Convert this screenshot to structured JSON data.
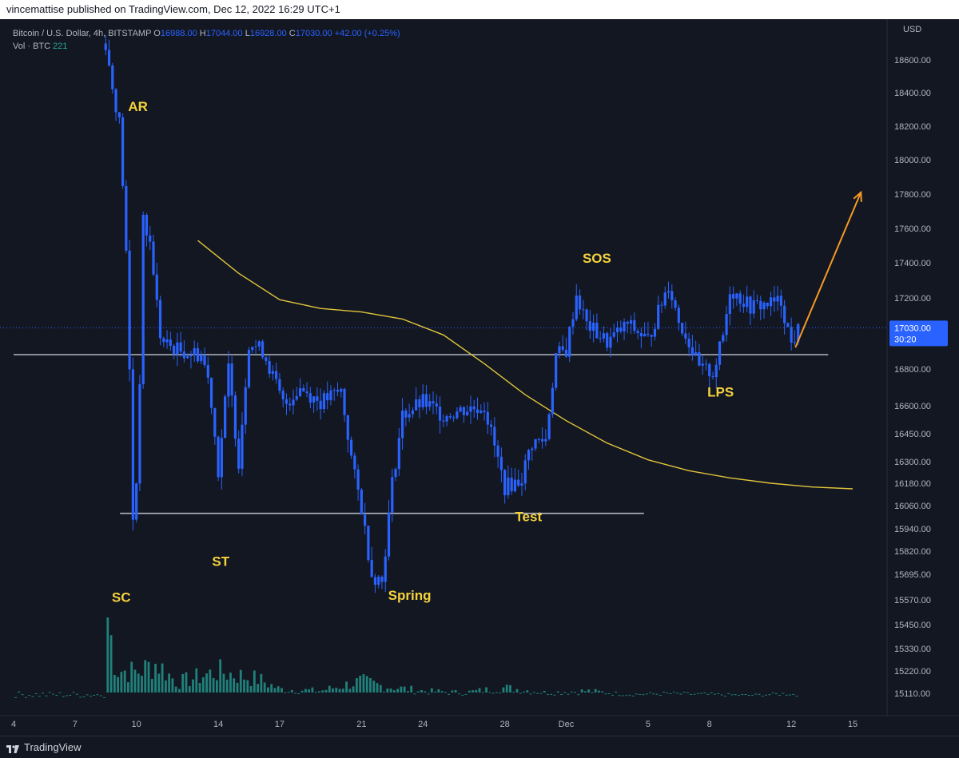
{
  "publisher": "vincemattise published on TradingView.com, Dec 12, 2022 16:29 UTC+1",
  "footer": {
    "brand": "TradingView"
  },
  "legend": {
    "symbol": "Bitcoin / U.S. Dollar, 4h, BITSTAMP",
    "open_label": "O",
    "open": "16988.00",
    "high_label": "H",
    "high": "17044.00",
    "low_label": "L",
    "low": "16928.00",
    "close_label": "C",
    "close": "17030.00",
    "change": "+42.00 (+0.25%)",
    "vol_label": "Vol · BTC",
    "vol_value": "221"
  },
  "price_tag": {
    "price": "17030.00",
    "countdown": "30:20"
  },
  "colors": {
    "background": "#131722",
    "candle": "#2962ff",
    "volume": "#26a69a",
    "annotation": "#f5d23c",
    "curve": "#e0c43a",
    "arrow": "#f59a23",
    "level": "#b2b5be"
  },
  "chart_data": {
    "type": "candlestick",
    "currency_label": "USD",
    "y_ticks": [
      18600,
      18400,
      18200,
      18000,
      17800,
      17600,
      17400,
      17200,
      17000,
      16800,
      16600,
      16450,
      16300,
      16180,
      16060,
      15940,
      15820,
      15695,
      15570,
      15450,
      15330,
      15220,
      15110
    ],
    "y_tick_labels": [
      "18600.00",
      "18400.00",
      "18200.00",
      "18000.00",
      "17800.00",
      "17600.00",
      "17400.00",
      "17200.00",
      "17000.00",
      "16800.00",
      "16600.00",
      "16450.00",
      "16300.00",
      "16180.00",
      "16060.00",
      "15940.00",
      "15820.00",
      "15695.00",
      "15570.00",
      "15450.00",
      "15330.00",
      "15220.00",
      "15110.00"
    ],
    "x_ticks": [
      "4",
      "7",
      "10",
      "14",
      "17",
      "21",
      "24",
      "28",
      "Dec",
      "5",
      "8",
      "12",
      "15"
    ],
    "x_tick_days": [
      4,
      7,
      10,
      14,
      17,
      21,
      24,
      28,
      31,
      35,
      38,
      42,
      45
    ],
    "candle_path": [
      [
        8.5,
        18700
      ],
      [
        8.8,
        18450
      ],
      [
        9.2,
        18200
      ],
      [
        9.6,
        17200
      ],
      [
        9.8,
        15960
      ],
      [
        10.1,
        16300
      ],
      [
        10.3,
        17650
      ],
      [
        10.7,
        17500
      ],
      [
        11.2,
        16950
      ],
      [
        12.2,
        16900
      ],
      [
        13.2,
        16880
      ],
      [
        13.6,
        16700
      ],
      [
        14.0,
        16250
      ],
      [
        14.5,
        16800
      ],
      [
        15.0,
        16300
      ],
      [
        15.5,
        16950
      ],
      [
        16.2,
        16900
      ],
      [
        17.2,
        16600
      ],
      [
        18.0,
        16700
      ],
      [
        19.0,
        16620
      ],
      [
        20.0,
        16680
      ],
      [
        20.6,
        16250
      ],
      [
        21.0,
        16050
      ],
      [
        21.5,
        15700
      ],
      [
        22.0,
        15660
      ],
      [
        22.5,
        16180
      ],
      [
        23.0,
        16550
      ],
      [
        24.0,
        16620
      ],
      [
        25.0,
        16550
      ],
      [
        26.0,
        16580
      ],
      [
        27.0,
        16600
      ],
      [
        28.0,
        16160
      ],
      [
        28.8,
        16200
      ],
      [
        29.3,
        16400
      ],
      [
        30.0,
        16420
      ],
      [
        30.5,
        16880
      ],
      [
        31.0,
        16900
      ],
      [
        31.5,
        17220
      ],
      [
        32.0,
        17050
      ],
      [
        33.0,
        16950
      ],
      [
        34.0,
        17050
      ],
      [
        35.0,
        16960
      ],
      [
        36.0,
        17280
      ],
      [
        36.5,
        17070
      ],
      [
        37.0,
        16950
      ],
      [
        37.5,
        16800
      ],
      [
        38.2,
        16780
      ],
      [
        38.7,
        17000
      ],
      [
        39.0,
        17250
      ],
      [
        40.0,
        17150
      ],
      [
        41.0,
        17170
      ],
      [
        41.5,
        17180
      ],
      [
        42.0,
        16940
      ],
      [
        42.4,
        17030
      ]
    ],
    "volume_path": [
      [
        4,
        15090
      ],
      [
        6,
        15095
      ],
      [
        8,
        15115
      ],
      [
        8.5,
        15670
      ],
      [
        9,
        15260
      ],
      [
        10,
        15245
      ],
      [
        11,
        15300
      ],
      [
        12,
        15180
      ],
      [
        14,
        15250
      ],
      [
        16,
        15200
      ],
      [
        17,
        15140
      ],
      [
        19,
        15130
      ],
      [
        21,
        15190
      ],
      [
        22,
        15160
      ],
      [
        24,
        15130
      ],
      [
        26,
        15120
      ],
      [
        28,
        15150
      ],
      [
        30,
        15120
      ],
      [
        32,
        15130
      ],
      [
        34,
        15110
      ],
      [
        36,
        15115
      ],
      [
        38,
        15110
      ],
      [
        40,
        15105
      ],
      [
        42,
        15115
      ],
      [
        42.4,
        15095
      ]
    ],
    "levels": [
      {
        "price": 16880,
        "from_day": 4,
        "to_day": 43.8
      },
      {
        "price": 16020,
        "from_day": 9.2,
        "to_day": 34.8
      }
    ],
    "current_price": 17030,
    "trend_curve": [
      [
        13.0,
        17530
      ],
      [
        15.0,
        17340
      ],
      [
        17.0,
        17190
      ],
      [
        19.0,
        17140
      ],
      [
        21.0,
        17120
      ],
      [
        23.0,
        17080
      ],
      [
        25.0,
        16990
      ],
      [
        27.0,
        16830
      ],
      [
        29.0,
        16660
      ],
      [
        31.0,
        16520
      ],
      [
        33.0,
        16400
      ],
      [
        35.0,
        16310
      ],
      [
        37.0,
        16250
      ],
      [
        39.0,
        16210
      ],
      [
        41.0,
        16180
      ],
      [
        43.0,
        16160
      ],
      [
        45.0,
        16150
      ]
    ],
    "projection_arrow": {
      "from": [
        42.2,
        16920
      ],
      "to": [
        45.4,
        17810
      ]
    },
    "annotations": [
      {
        "text": "AR",
        "day": 9.6,
        "price": 18290
      },
      {
        "text": "SC",
        "day": 8.8,
        "price": 15560
      },
      {
        "text": "ST",
        "day": 13.7,
        "price": 15740
      },
      {
        "text": "Spring",
        "day": 22.3,
        "price": 15570
      },
      {
        "text": "Test",
        "day": 28.5,
        "price": 15980
      },
      {
        "text": "SOS",
        "day": 31.8,
        "price": 17400
      },
      {
        "text": "LPS",
        "day": 37.9,
        "price": 16650
      }
    ]
  }
}
